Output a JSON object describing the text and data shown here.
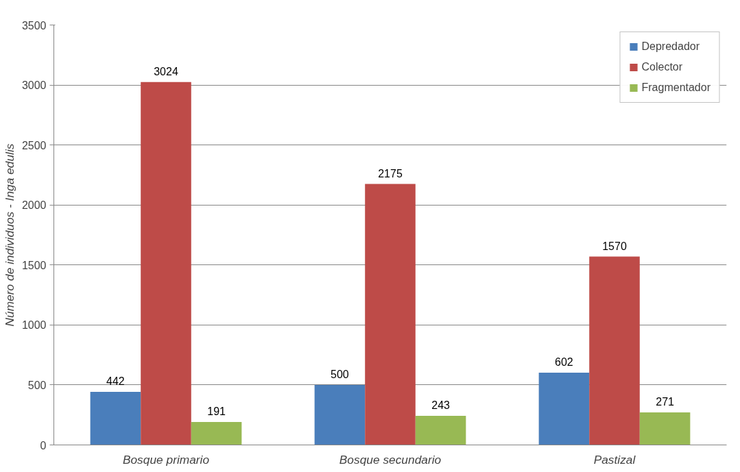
{
  "chart_data": {
    "type": "bar",
    "ylabel": "Número de individuos - Inga edulis",
    "categories": [
      "Bosque primario",
      "Bosque secundario",
      "Pastizal"
    ],
    "series": [
      {
        "name": "Depredador",
        "color": "#4a7ebb",
        "values": [
          442,
          500,
          602
        ]
      },
      {
        "name": "Colector",
        "color": "#be4b48",
        "values": [
          3024,
          2175,
          1570
        ]
      },
      {
        "name": "Fragmentador",
        "color": "#98b954",
        "values": [
          191,
          243,
          271
        ]
      }
    ],
    "ylim": [
      0,
      3500
    ],
    "yticks": [
      0,
      500,
      1000,
      1500,
      2000,
      2500,
      3000,
      3500
    ],
    "grid": "y",
    "legend": "top right",
    "data_labels": true
  }
}
